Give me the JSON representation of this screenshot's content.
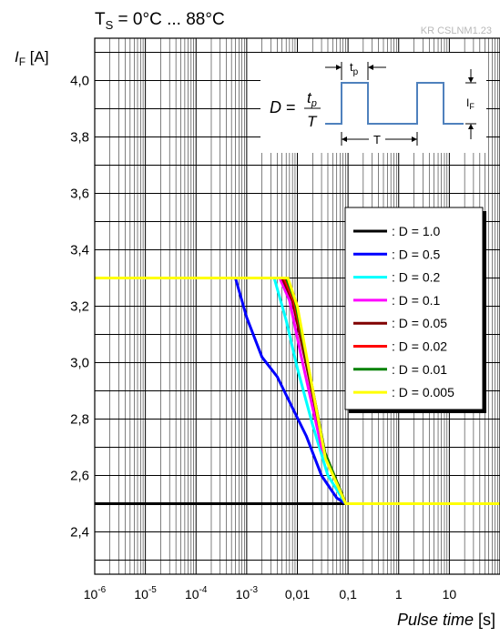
{
  "chart_data": {
    "type": "line",
    "title_prefix": "T",
    "title_sub": "S",
    "title_suffix": " = 0°C ... 88°C",
    "code": "KR CSLNM1.23",
    "ylabel_main": "I",
    "ylabel_sub": "F",
    "ylabel_unit": " [A]",
    "xlabel_main": "Pulse time",
    "xlabel_unit": " [s]",
    "x_scale": "log",
    "xlim": [
      1e-06,
      100
    ],
    "ylim": [
      2.25,
      4.15
    ],
    "grid": true,
    "legend_position": "center-right",
    "x_ticks": [
      {
        "v": 1e-06,
        "base": "10",
        "exp": "-6"
      },
      {
        "v": 1e-05,
        "base": "10",
        "exp": "-5"
      },
      {
        "v": 0.0001,
        "base": "10",
        "exp": "-4"
      },
      {
        "v": 0.001,
        "base": "10",
        "exp": "-3"
      },
      {
        "v": 0.01,
        "base": "0,01",
        "exp": ""
      },
      {
        "v": 0.1,
        "base": "0,1",
        "exp": ""
      },
      {
        "v": 1,
        "base": "1",
        "exp": ""
      },
      {
        "v": 10,
        "base": "10",
        "exp": ""
      }
    ],
    "y_ticks": [
      {
        "v": 2.4,
        "label": "2,4"
      },
      {
        "v": 2.6,
        "label": "2,6"
      },
      {
        "v": 2.8,
        "label": "2,8"
      },
      {
        "v": 3.0,
        "label": "3,0"
      },
      {
        "v": 3.2,
        "label": "3,2"
      },
      {
        "v": 3.4,
        "label": "3,4"
      },
      {
        "v": 3.6,
        "label": "3,6"
      },
      {
        "v": 3.8,
        "label": "3,8"
      },
      {
        "v": 4.0,
        "label": "4,0"
      }
    ],
    "series": [
      {
        "name": ": D = 1.0",
        "color": "#000000",
        "x": [
          1e-06,
          100
        ],
        "y": [
          2.5,
          2.5
        ]
      },
      {
        "name": ": D = 0.5",
        "color": "#0000ff",
        "x": [
          0.0006,
          0.001,
          0.002,
          0.004,
          0.008,
          0.015,
          0.03,
          0.06,
          0.09,
          100
        ],
        "y": [
          3.3,
          3.16,
          3.02,
          2.95,
          2.84,
          2.74,
          2.6,
          2.52,
          2.5,
          2.5
        ]
      },
      {
        "name": ": D = 0.2",
        "color": "#00ffff",
        "x": [
          1e-06,
          0.0035,
          0.006,
          0.01,
          0.02,
          0.04,
          0.09,
          100
        ],
        "y": [
          3.3,
          3.3,
          3.15,
          2.98,
          2.78,
          2.6,
          2.5,
          2.5
        ]
      },
      {
        "name": ": D = 0.1",
        "color": "#ff00ff",
        "x": [
          1e-06,
          0.0045,
          0.007,
          0.012,
          0.03,
          0.09,
          100
        ],
        "y": [
          3.3,
          3.3,
          3.22,
          3.02,
          2.7,
          2.5,
          2.5
        ]
      },
      {
        "name": ": D = 0.05",
        "color": "#800000",
        "x": [
          1e-06,
          0.005,
          0.008,
          0.014,
          0.035,
          0.09,
          100
        ],
        "y": [
          3.3,
          3.3,
          3.22,
          3.02,
          2.68,
          2.5,
          2.5
        ]
      },
      {
        "name": ": D = 0.02",
        "color": "#ff0000",
        "x": [
          1e-06,
          0.0055,
          0.0085,
          0.015,
          0.035,
          0.09,
          100
        ],
        "y": [
          3.3,
          3.3,
          3.22,
          3.02,
          2.68,
          2.5,
          2.5
        ]
      },
      {
        "name": ": D = 0.01",
        "color": "#008000",
        "x": [
          1e-06,
          0.006,
          0.009,
          0.015,
          0.035,
          0.09,
          100
        ],
        "y": [
          3.3,
          3.3,
          3.22,
          3.02,
          2.68,
          2.5,
          2.5
        ]
      },
      {
        "name": ": D = 0.005",
        "color": "#ffff00",
        "x": [
          1e-06,
          0.0065,
          0.01,
          0.016,
          0.036,
          0.09,
          100
        ],
        "y": [
          3.3,
          3.3,
          3.2,
          3.0,
          2.66,
          2.5,
          2.5
        ]
      }
    ]
  },
  "inset": {
    "formula_d": "D",
    "formula_eq": "=",
    "formula_num_t": "t",
    "formula_num_p": "p",
    "formula_den": "T",
    "tp_t": "t",
    "tp_p": "p",
    "period_label": "T",
    "if_i": "I",
    "if_f": "F",
    "pulse_color": "#4f81bd"
  }
}
